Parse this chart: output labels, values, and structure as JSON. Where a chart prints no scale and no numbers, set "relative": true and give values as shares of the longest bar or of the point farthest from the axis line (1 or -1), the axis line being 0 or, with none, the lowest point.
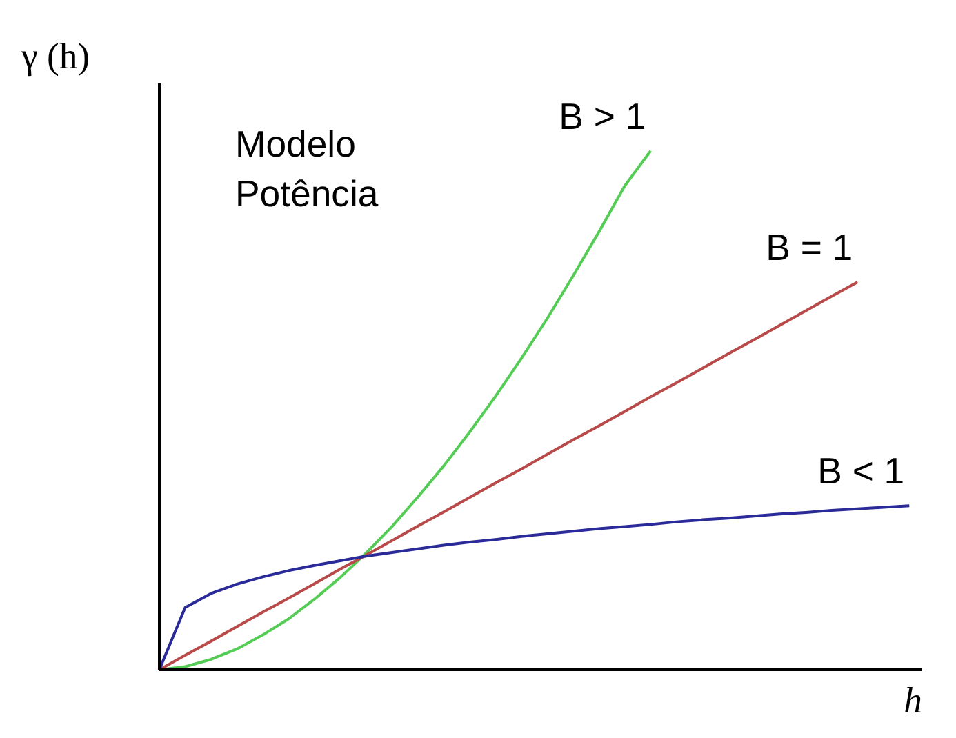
{
  "chart_data": {
    "type": "line",
    "relative": true,
    "xlabel": "h",
    "ylabel": "γ (h)",
    "annotations": [
      "Modelo\nPotência"
    ],
    "categories": [
      null,
      null,
      null,
      null,
      null,
      null,
      null,
      null,
      null,
      null,
      null,
      null,
      null,
      null,
      null,
      null,
      null,
      null,
      null,
      null,
      null,
      null,
      null,
      null,
      null,
      null,
      null,
      null,
      null,
      null
    ],
    "marker": "none",
    "line_style": "solid",
    "series": [
      {
        "name": "B > 1",
        "color": "#55cc55",
        "values": [
          0,
          0.006,
          0.02,
          0.04,
          0.067,
          0.098,
          0.136,
          0.178,
          0.225,
          0.276,
          0.333,
          0.393,
          0.458,
          0.527,
          0.6,
          0.677,
          0.759,
          0.844,
          0.933,
          1.0,
          null,
          null,
          null,
          null,
          null,
          null,
          null,
          null,
          null,
          null
        ]
      },
      {
        "name": "B = 1",
        "color": "#b84a4a",
        "values": [
          0,
          0.028,
          0.055,
          0.083,
          0.111,
          0.138,
          0.166,
          0.194,
          0.221,
          0.249,
          0.277,
          0.304,
          0.332,
          0.36,
          0.387,
          0.415,
          0.443,
          0.47,
          0.498,
          0.526,
          0.553,
          0.581,
          0.609,
          0.636,
          0.664,
          0.692,
          0.72,
          0.747,
          null,
          null
        ]
      },
      {
        "name": "B < 1",
        "color": "#2a2a99",
        "values": [
          0,
          0.12,
          0.147,
          0.165,
          0.179,
          0.191,
          0.201,
          0.21,
          0.219,
          0.226,
          0.233,
          0.24,
          0.246,
          0.251,
          0.257,
          0.262,
          0.267,
          0.272,
          0.276,
          0.28,
          0.285,
          0.289,
          0.292,
          0.296,
          0.3,
          0.303,
          0.307,
          0.31,
          0.313,
          0.316
        ]
      }
    ]
  }
}
